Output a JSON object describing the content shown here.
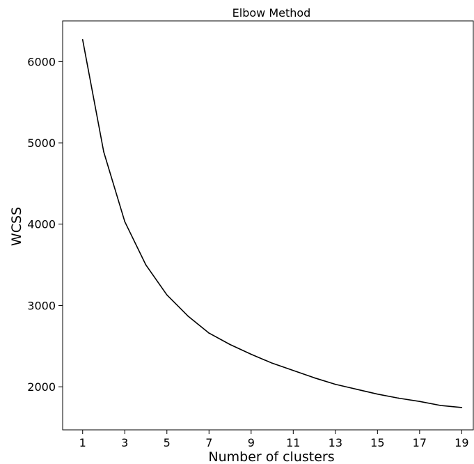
{
  "chart_data": {
    "type": "line",
    "title": "Elbow Method",
    "xlabel": "Number of clusters",
    "ylabel": "WCSS",
    "xlim": [
      0.05,
      19.55
    ],
    "ylim": [
      1470,
      6500
    ],
    "x_ticks": [
      1,
      3,
      5,
      7,
      9,
      11,
      13,
      15,
      17,
      19
    ],
    "y_ticks": [
      2000,
      3000,
      4000,
      5000,
      6000
    ],
    "grid": false,
    "line_color": "#000000",
    "series": [
      {
        "x": [
          1,
          2,
          3,
          4,
          5,
          6,
          7,
          8,
          9,
          10,
          11,
          12,
          13,
          14,
          15,
          16,
          17,
          18,
          19
        ],
        "values": [
          6270,
          4890,
          4030,
          3500,
          3130,
          2870,
          2660,
          2520,
          2400,
          2290,
          2200,
          2110,
          2030,
          1970,
          1910,
          1860,
          1820,
          1770,
          1745
        ]
      }
    ]
  }
}
